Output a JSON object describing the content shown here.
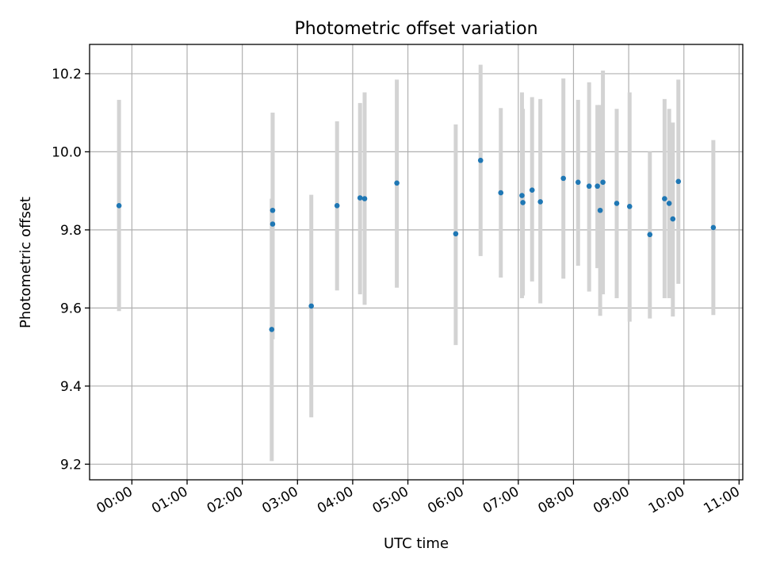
{
  "chart_data": {
    "type": "scatter",
    "title": "Photometric offset variation",
    "xlabel": "UTC time",
    "ylabel": "Photometric offset",
    "x_unit": "hour",
    "xlim": [
      "-00:46",
      "11:04"
    ],
    "ylim": [
      9.16,
      10.275
    ],
    "x_ticks": [
      "00:00",
      "01:00",
      "02:00",
      "03:00",
      "04:00",
      "05:00",
      "06:00",
      "07:00",
      "08:00",
      "09:00",
      "10:00",
      "11:00"
    ],
    "y_ticks": [
      "9.2",
      "9.4",
      "9.6",
      "9.8",
      "10.0",
      "10.2"
    ],
    "grid": true,
    "colors": {
      "point": "#1f77b4",
      "errorbar": "#d3d3d3",
      "grid": "#b0b0b0"
    },
    "series": [
      {
        "x": [
          "-00:14",
          "02:32",
          "02:33",
          "02:33",
          "03:15",
          "03:43",
          "04:08",
          "04:13",
          "04:48",
          "05:52",
          "06:19",
          "06:41",
          "07:04",
          "07:05",
          "07:15",
          "07:24",
          "07:49",
          "08:05",
          "08:17",
          "08:26",
          "08:29",
          "08:32",
          "08:47",
          "09:01",
          "09:23",
          "09:39",
          "09:44",
          "09:48",
          "09:54",
          "10:32"
        ],
        "y": [
          9.862,
          9.545,
          9.815,
          9.85,
          9.605,
          9.862,
          9.882,
          9.88,
          9.92,
          9.79,
          9.978,
          9.895,
          9.888,
          9.87,
          9.902,
          9.872,
          9.932,
          9.922,
          9.912,
          9.912,
          9.85,
          9.922,
          9.868,
          9.86,
          9.788,
          9.88,
          9.868,
          9.828,
          9.924,
          9.806
        ],
        "yerr_low": [
          9.592,
          9.208,
          9.54,
          9.52,
          9.32,
          9.645,
          9.635,
          9.608,
          9.652,
          9.505,
          9.733,
          9.678,
          9.625,
          9.632,
          9.668,
          9.612,
          9.675,
          9.708,
          9.642,
          9.702,
          9.58,
          9.635,
          9.625,
          9.565,
          9.573,
          9.625,
          9.625,
          9.578,
          9.662,
          9.582
        ],
        "yerr_high": [
          10.133,
          9.88,
          10.1,
          10.1,
          9.89,
          10.078,
          10.125,
          10.152,
          10.185,
          10.07,
          10.223,
          10.112,
          10.152,
          10.11,
          10.14,
          10.135,
          10.188,
          10.133,
          10.178,
          10.12,
          10.12,
          10.208,
          10.11,
          10.152,
          10.0,
          10.135,
          10.11,
          10.075,
          10.185,
          10.03
        ]
      }
    ]
  }
}
